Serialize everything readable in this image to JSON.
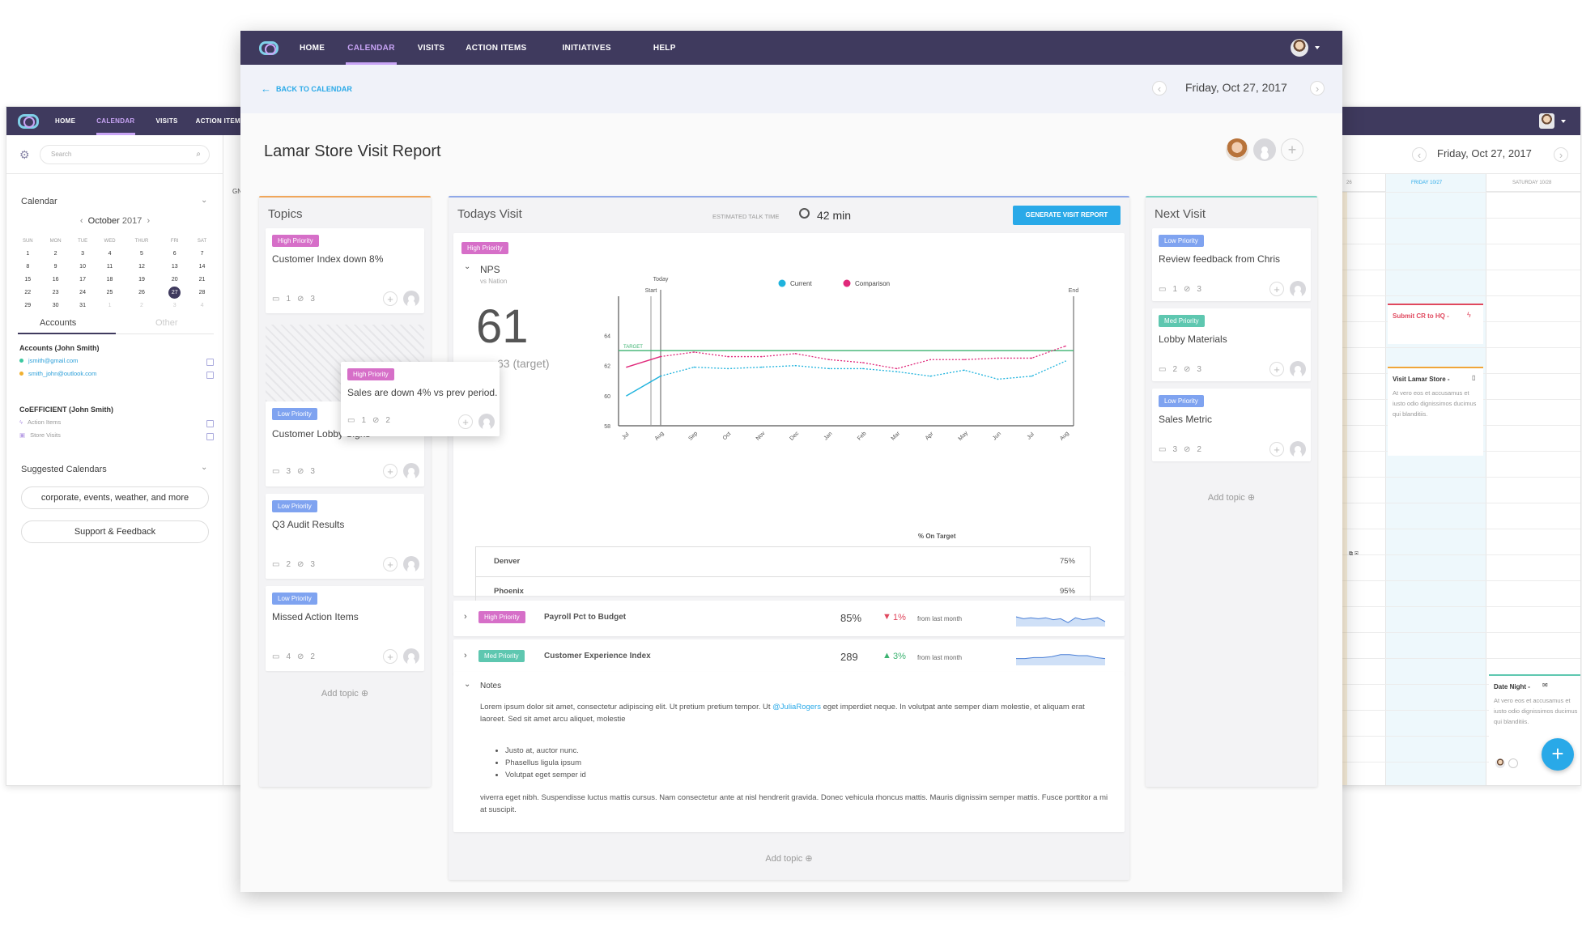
{
  "back_window": {
    "nav": [
      "HOME",
      "CALENDAR",
      "VISITS",
      "ACTION ITEMS"
    ],
    "active_nav": "CALENDAR",
    "search_placeholder": "Search",
    "date": "Friday, Oct 27, 2017",
    "calendar": {
      "title": "Calendar",
      "month": "October",
      "year": "2017",
      "weekdays": [
        "SUN",
        "MON",
        "TUE",
        "WED",
        "THUR",
        "FRI",
        "SAT"
      ],
      "weeks": [
        [
          "1",
          "2",
          "3",
          "4",
          "5",
          "6",
          "7"
        ],
        [
          "8",
          "9",
          "10",
          "11",
          "12",
          "13",
          "14"
        ],
        [
          "15",
          "16",
          "17",
          "18",
          "19",
          "20",
          "21"
        ],
        [
          "22",
          "23",
          "24",
          "25",
          "26",
          "27",
          "28"
        ],
        [
          "29",
          "30",
          "31",
          "1",
          "2",
          "3",
          "4"
        ]
      ],
      "selected": "27"
    },
    "tabs": [
      "Accounts",
      "Other"
    ],
    "accounts_heading": "Accounts (John Smith)",
    "accounts": [
      "jsmith@gmail.com",
      "smith_john@outlook.com"
    ],
    "coefficient_heading": "CoEFFICIENT (John Smith)",
    "coefficient_items": [
      "Action Items",
      "Store Visits"
    ],
    "suggested_heading": "Suggested Calendars",
    "buttons": [
      "corporate, events, weather, and more",
      "Support & Feedback"
    ],
    "day_headers": [
      "FRIDAY 10/27",
      "SATURDAY 10/28"
    ],
    "day_header_partial": "26",
    "gm_fragment": "GN",
    "events": [
      {
        "title": "Submit CR to HQ -",
        "color": "#e0485e"
      },
      {
        "title": "Visit Lamar Store -",
        "desc": "At vero eos et accusamus et iusto odio dignissimos ducimus qui blanditiis.",
        "color": "#f0a63a"
      },
      {
        "title": "Date Night -",
        "desc": "At vero eos et accusamus et iusto odio dignissimos ducimus qui blanditiis.",
        "color": "#5ec7b0"
      }
    ]
  },
  "nav": {
    "items": [
      "HOME",
      "CALENDAR",
      "VISITS",
      "ACTION ITEMS",
      "INITIATIVES",
      "HELP"
    ],
    "active": "CALENDAR"
  },
  "subheader": {
    "back": "BACK TO CALENDAR",
    "date": "Friday, Oct 27, 2017"
  },
  "page_title": "Lamar Store Visit Report",
  "topics": {
    "title": "Topics",
    "cards": [
      {
        "badge": "High Priority",
        "title": "Customer Index down 8%",
        "comments": "1",
        "attachments": "3"
      },
      {
        "badge": "Low Priority",
        "title": "Customer Lobby Signs",
        "comments": "3",
        "attachments": "3"
      },
      {
        "badge": "Low Priority",
        "title": "Q3 Audit Results",
        "comments": "2",
        "attachments": "3"
      },
      {
        "badge": "Low Priority",
        "title": "Missed Action Items",
        "comments": "4",
        "attachments": "2"
      }
    ],
    "dragging": {
      "badge": "High Priority",
      "title": "Sales are down 4% vs prev period.",
      "comments": "1",
      "attachments": "2"
    },
    "add": "Add topic"
  },
  "visit": {
    "title": "Todays Visit",
    "talk_label": "ESTIMATED TALK TIME",
    "talk_time": "42 min",
    "generate": "GENERATE VISIT REPORT",
    "badge": "High Priority",
    "nps_label": "NPS",
    "nps_sub": "vs Nation",
    "nps_value": "61",
    "nps_target_partial": "63 (target)",
    "table_header": "% On Target",
    "table": [
      {
        "name": "Denver",
        "value": "75%"
      },
      {
        "name": "Phoenix",
        "value": "95%"
      }
    ],
    "metrics": [
      {
        "badge": "High Priority",
        "badge_type": "high",
        "name": "Payroll Pct to Budget",
        "value": "85%",
        "change": "1%",
        "direction": "down",
        "change_color": "#e0485e",
        "note": "from last month"
      },
      {
        "badge": "Med Priority",
        "badge_type": "med",
        "name": "Customer Experience Index",
        "value": "289",
        "change": "3%",
        "direction": "up",
        "change_color": "#3cb371",
        "note": "from last month"
      }
    ],
    "notes_title": "Notes",
    "notes_p1_a": "Lorem ipsum dolor sit amet, consectetur adipiscing elit. Ut pretium pretium tempor. Ut ",
    "notes_mention": "@JuliaRogers",
    "notes_p1_b": " eget imperdiet neque. In volutpat ante semper diam molestie, et aliquam erat laoreet. Sed sit amet arcu aliquet, molestie",
    "notes_bullets": [
      "Justo at, auctor nunc.",
      "Phasellus ligula ipsum",
      "Volutpat eget semper id"
    ],
    "notes_p2": "viverra eget nibh. Suspendisse luctus mattis cursus. Nam consectetur ante at nisl hendrerit gravida. Donec vehicula rhoncus mattis. Mauris dignissim semper mattis. Fusce porttitor a mi at suscipit.",
    "add": "Add topic"
  },
  "next_visit": {
    "title": "Next Visit",
    "cards": [
      {
        "badge": "Low Priority",
        "badge_type": "low",
        "title": "Review feedback from Chris",
        "comments": "1",
        "attachments": "3"
      },
      {
        "badge": "Med Priority",
        "badge_type": "med",
        "title": "Lobby Materials",
        "comments": "2",
        "attachments": "3"
      },
      {
        "badge": "Low Priority",
        "badge_type": "low",
        "title": "Sales Metric",
        "comments": "3",
        "attachments": "2"
      }
    ],
    "add": "Add topic"
  },
  "chart_data": {
    "type": "line",
    "categories": [
      "Jul",
      "Aug",
      "Sep",
      "Oct",
      "Nov",
      "Dec",
      "Jan",
      "Feb",
      "Mar",
      "Apr",
      "May",
      "Jun",
      "Jul",
      "Aug"
    ],
    "series": [
      {
        "name": "Current",
        "color": "#1fb3dd",
        "style": "dashed",
        "values": [
          60.0,
          61.3,
          61.9,
          61.8,
          61.9,
          62.0,
          61.8,
          61.8,
          61.6,
          61.3,
          61.7,
          61.1,
          61.3,
          62.3
        ]
      },
      {
        "name": "Comparison",
        "color": "#e0287a",
        "style": "dashed",
        "values": [
          61.9,
          62.6,
          62.9,
          62.6,
          62.6,
          62.8,
          62.4,
          62.2,
          61.8,
          62.4,
          62.4,
          62.5,
          62.5,
          63.3
        ]
      }
    ],
    "target": {
      "label": "TARGET",
      "value": 63,
      "color": "#3cb371"
    },
    "markers": [
      "Start",
      "Today",
      "End"
    ],
    "ylim": [
      58,
      65
    ],
    "yticks": [
      58,
      60,
      62,
      64
    ],
    "legend": "top-center"
  },
  "colors": {
    "nav_bg": "#3f3a5e",
    "accent": "#c8a4f5",
    "button": "#29a9e8"
  }
}
